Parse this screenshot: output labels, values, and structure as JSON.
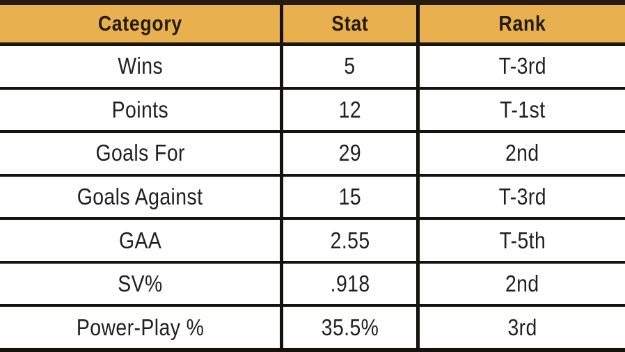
{
  "chart_data": {
    "type": "table",
    "columns": [
      "Category",
      "Stat",
      "Rank"
    ],
    "rows": [
      [
        "Wins",
        "5",
        "T-3rd"
      ],
      [
        "Points",
        "12",
        "T-1st"
      ],
      [
        "Goals For",
        "29",
        "2nd"
      ],
      [
        "Goals Against",
        "15",
        "T-3rd"
      ],
      [
        "GAA",
        "2.55",
        "T-5th"
      ],
      [
        "SV%",
        ".918",
        "2nd"
      ],
      [
        "Power-Play %",
        "35.5%",
        "3rd"
      ]
    ],
    "layout": {
      "header_position": "top",
      "grid": "on",
      "column_alignment": [
        "center",
        "center",
        "center"
      ]
    },
    "colors": {
      "header_bg": "#E8B04E",
      "header_text": "#241C12",
      "body_bg": "#FFFFFF",
      "body_text": "#1F1F1F",
      "border": "#16120F"
    }
  }
}
